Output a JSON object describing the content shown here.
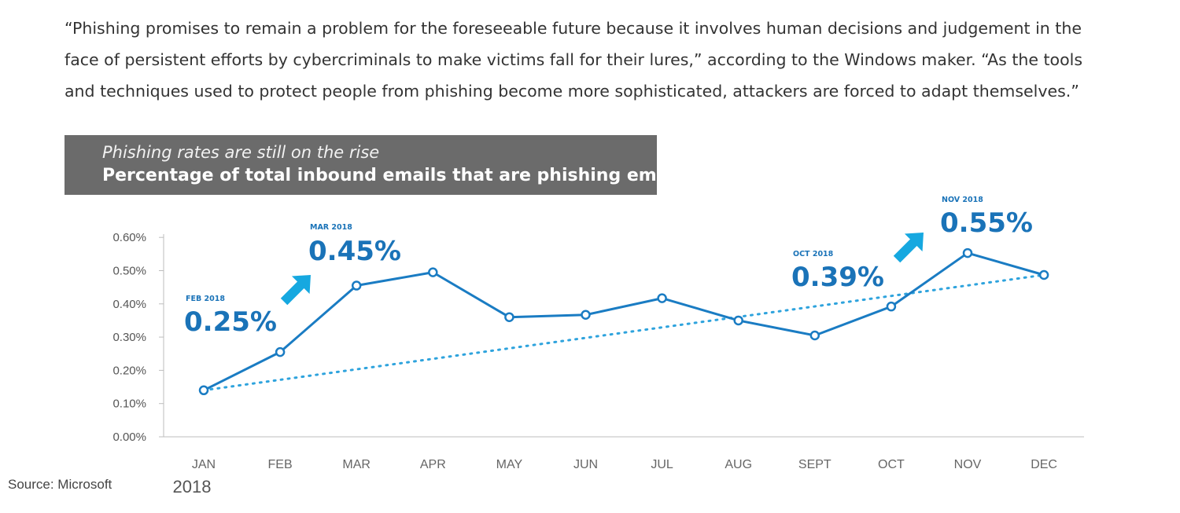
{
  "article": {
    "quote": "“Phishing promises to remain a problem for the foreseeable future because it involves human decisions and judgement in the face of persistent efforts by cybercriminals to make victims fall for their lures,” according to the Windows maker. “As the tools and techniques used to protect people from phishing become more sophisticated, attackers are forced to adapt themselves.”"
  },
  "source_label": "Source: Microsoft",
  "colors": {
    "line": "#1a7cc3",
    "trend": "#2ea3dd",
    "arrow": "#16a8e0",
    "callout_text": "#1a73b8",
    "title_bg": "#6b6b6b"
  },
  "chart_data": {
    "type": "line",
    "title": "Phishing rates are still on the rise",
    "subtitle": "Percentage of total inbound emails that are phishing emails",
    "categories": [
      "JAN",
      "FEB",
      "MAR",
      "APR",
      "MAY",
      "JUN",
      "JUL",
      "AUG",
      "SEPT",
      "OCT",
      "NOV",
      "DEC"
    ],
    "x_group_label": "2018",
    "series": [
      {
        "values": [
          0.14,
          0.255,
          0.455,
          0.495,
          0.36,
          0.367,
          0.417,
          0.35,
          0.305,
          0.392,
          0.553,
          0.487
        ]
      }
    ],
    "trendline": {
      "style": "dotted",
      "start": 0.14,
      "end": 0.487
    },
    "ylim": [
      0,
      0.6
    ],
    "yticks": [
      "0.00%",
      "0.10%",
      "0.20%",
      "0.30%",
      "0.40%",
      "0.50%",
      "0.60%"
    ],
    "grid": false,
    "annotations": [
      {
        "month_label": "FEB 2018",
        "value_label": "0.25%",
        "arrow": false
      },
      {
        "month_label": "MAR 2018",
        "value_label": "0.45%",
        "arrow": true
      },
      {
        "month_label": "OCT 2018",
        "value_label": "0.39%",
        "arrow": false
      },
      {
        "month_label": "NOV 2018",
        "value_label": "0.55%",
        "arrow": true
      }
    ]
  }
}
